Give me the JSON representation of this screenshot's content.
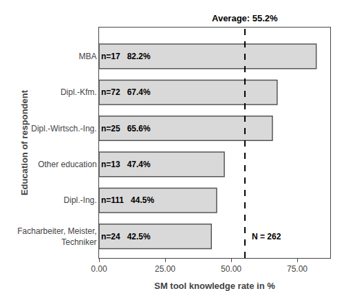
{
  "chart_data": {
    "type": "bar",
    "orientation": "horizontal",
    "categories": [
      "Facharbeiter, Meister,\nTechniker",
      "Dipl.-Ing.",
      "Other education",
      "Dipl.-Wirtsch.-Ing.",
      "Dipl.-Kfm.",
      "MBA"
    ],
    "values": [
      42.5,
      44.5,
      47.4,
      65.6,
      67.4,
      82.2
    ],
    "data_labels": true,
    "value_labels": [
      "n=24   42.5%",
      "n=111   44.5%",
      "n=13   47.4%",
      "n=25   65.6%",
      "n=72   67.4%",
      "n=17   82.2%"
    ],
    "color": "#d9d9d9",
    "reference_line": {
      "x": 55.2,
      "label": "Average: 55.2%"
    },
    "annotations": [
      {
        "text": "N = 262",
        "x": 55.2
      }
    ],
    "xlabel": "SM tool knowledge rate in %",
    "ylabel": "Education of respondent",
    "xlim": [
      0,
      87.5
    ],
    "xticks": [
      {
        "value": 0.0,
        "label": "0.00"
      },
      {
        "value": 25.0,
        "label": "25.00"
      },
      {
        "value": 50.0,
        "label": "50.00"
      },
      {
        "value": 75.0,
        "label": "75.00"
      }
    ],
    "grid": false
  }
}
